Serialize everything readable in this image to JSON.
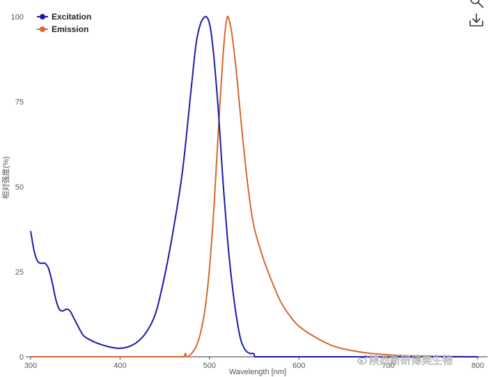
{
  "toolbar": {
    "zoom_icon": "magnifier-icon",
    "download_icon": "download-icon"
  },
  "watermark": {
    "text": "陕西新研博美生物",
    "icon": "weibo-icon"
  },
  "chart_data": {
    "type": "line",
    "title": "",
    "xlabel": "Wavelength [nm]",
    "ylabel": "相对强度(%)",
    "xlim": [
      300,
      800
    ],
    "ylim": [
      0,
      100
    ],
    "x_ticks": [
      "300",
      "400",
      "500",
      "600",
      "700",
      "800"
    ],
    "y_ticks": [
      "0",
      "25",
      "50",
      "75",
      "100"
    ],
    "grid": false,
    "legend": {
      "position": "top-left",
      "entries": [
        "Excitation",
        "Emission"
      ]
    },
    "series": [
      {
        "name": "Excitation",
        "color": "#1a1aa6",
        "x": [
          300,
          304,
          308,
          312,
          316,
          320,
          324,
          328,
          332,
          336,
          340,
          344,
          348,
          352,
          356,
          360,
          370,
          380,
          390,
          400,
          410,
          420,
          430,
          440,
          450,
          460,
          470,
          480,
          485,
          490,
          495,
          498,
          500,
          502,
          505,
          510,
          515,
          520,
          525,
          530,
          535,
          540,
          545,
          548,
          550,
          551,
          560,
          580,
          600,
          650,
          700,
          750,
          800
        ],
        "y": [
          37,
          31,
          28,
          27.5,
          27.5,
          26,
          22,
          17,
          14,
          13.5,
          14,
          13.5,
          11.5,
          9.5,
          7.5,
          6,
          4.5,
          3.5,
          2.8,
          2.5,
          3,
          4.5,
          7.5,
          13,
          24,
          38,
          55,
          80,
          92,
          98,
          100,
          99.5,
          98,
          95,
          88,
          72,
          52,
          35,
          22,
          12,
          5,
          2,
          1,
          1,
          0.8,
          0,
          0,
          0,
          0,
          0,
          0,
          0,
          0
        ]
      },
      {
        "name": "Emission",
        "color": "#d9662b",
        "x": [
          300,
          350,
          400,
          450,
          470,
          472,
          473,
          475,
          480,
          485,
          490,
          495,
          500,
          505,
          510,
          515,
          518,
          520,
          522,
          525,
          530,
          535,
          540,
          545,
          550,
          560,
          570,
          580,
          590,
          600,
          620,
          640,
          660,
          680,
          700,
          720,
          740,
          760,
          780,
          800
        ],
        "y": [
          0,
          0,
          0,
          0,
          0,
          0.2,
          1,
          0,
          1,
          3,
          7,
          14,
          26,
          44,
          67,
          88,
          97,
          100,
          99,
          95,
          84,
          70,
          57,
          46,
          38,
          29,
          22,
          16,
          12,
          9,
          5.5,
          3,
          1.8,
          1,
          0.6,
          0.3,
          0.2,
          0.1,
          0.05,
          0
        ]
      }
    ]
  }
}
